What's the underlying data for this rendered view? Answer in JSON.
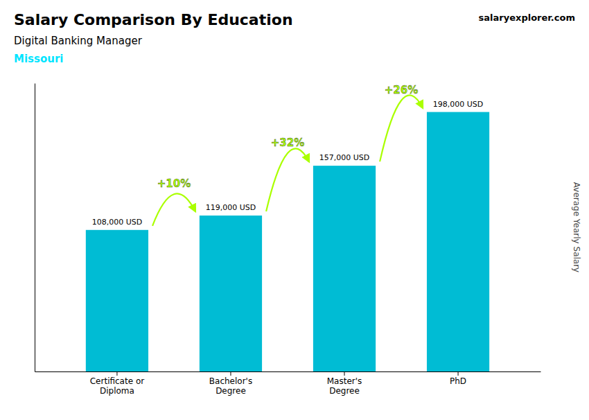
{
  "chart_data": {
    "type": "bar",
    "title": "Salary Comparison By Education",
    "subtitle": "Digital Banking Manager",
    "y_label": "Average Yearly Salary",
    "categories": [
      "Certificate or\nDiploma",
      "Bachelor's\nDegree",
      "Master's\nDegree",
      "PhD"
    ],
    "values": [
      108000,
      119000,
      157000,
      198000
    ],
    "value_labels": [
      "108,000 USD",
      "119,000 USD",
      "157,000 USD",
      "198,000 USD"
    ],
    "data_labels": true,
    "color": "#00bcd4",
    "ylim": [
      0,
      220000
    ],
    "tick_labels": "x",
    "grid": false,
    "annotations": [
      {
        "text": "Missouri",
        "color": "#00e5ff"
      },
      {
        "text": "salaryexplorer.com"
      },
      {
        "text": "+10%",
        "from": 0,
        "to": 1,
        "color": "#aaff00"
      },
      {
        "text": "+32%",
        "from": 1,
        "to": 2,
        "color": "#aaff00"
      },
      {
        "text": "+26%",
        "from": 2,
        "to": 3,
        "color": "#aaff00"
      }
    ]
  }
}
